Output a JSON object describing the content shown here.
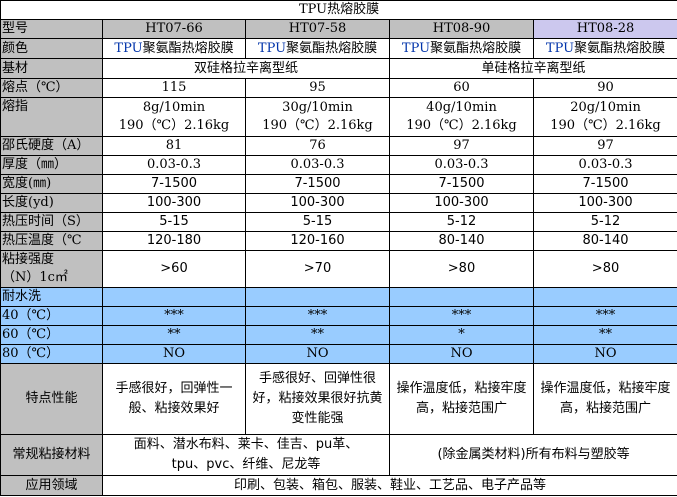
{
  "title": "TPU热熔胶膜",
  "colors": {
    "label_bg": "#c0c0c0",
    "wash_bg": "#99ccff",
    "ht0828_header_bg": "#ccc8ee"
  },
  "rows": {
    "model": {
      "label": "型号",
      "values": [
        "HT07-66",
        "HT07-58",
        "HT08-90",
        "HT08-28"
      ]
    },
    "color": {
      "label": "颜色",
      "prefix": "TPU",
      "suffix": "聚氨酯热熔胶膜"
    },
    "substrate": {
      "label": "基材",
      "values": [
        "双硅格拉辛离型纸",
        "单硅格拉辛离型纸"
      ]
    },
    "melt_point": {
      "label": "熔点（℃）",
      "values": [
        "115",
        "95",
        "60",
        "90"
      ]
    },
    "melt_index": {
      "label": "熔指",
      "line1": [
        "8g/10min",
        "30g/10min",
        "40g/10min",
        "20g/10min"
      ],
      "line2": "190（℃）2.16kg"
    },
    "shore": {
      "label": "邵氏硬度（A）",
      "values": [
        "81",
        "76",
        "97",
        "97"
      ]
    },
    "thickness": {
      "label": "厚度（㎜）",
      "values": [
        "0.03-0.3",
        "0.03-0.3",
        "0.03-0.3",
        "0.03-0.3"
      ]
    },
    "width": {
      "label": "宽度(㎜)",
      "values": [
        "7-1500",
        "7-1500",
        "7-1500",
        "7-1500"
      ]
    },
    "length": {
      "label": "长度(yd)",
      "values": [
        "100-300",
        "100-300",
        "100-300",
        "100-300"
      ]
    },
    "press_time": {
      "label": "热压时间（S）",
      "values": [
        "5-15",
        "5-15",
        "5-12",
        "5-12"
      ]
    },
    "press_temp": {
      "label": "热压温度（℃",
      "values": [
        "120-180",
        "120-160",
        "80-140",
        "80-140"
      ]
    },
    "bond": {
      "label1": "粘接强度",
      "label2": "（N）1c㎡",
      "values": [
        ">60",
        ">70",
        ">80",
        ">80"
      ]
    },
    "wash": {
      "label": "耐水洗"
    },
    "w40": {
      "label": "40（℃）",
      "values": [
        "***",
        "***",
        "***",
        "***"
      ]
    },
    "w60": {
      "label": "60（℃）",
      "values": [
        "**",
        "**",
        "*",
        "**"
      ]
    },
    "w80": {
      "label": "80（℃）",
      "values": [
        "NO",
        "NO",
        "NO",
        "NO"
      ]
    },
    "features": {
      "label": "特点性能",
      "values": [
        "手感很好，回弹性一般、粘接效果好",
        "手感很好、回弹性很好，粘接效果很好抗黄变性能强",
        "操作温度低，粘接牢度高，粘接范围广",
        "操作温度低，粘接牢度高，粘接范围广"
      ]
    },
    "materials": {
      "label": "常规粘接材料",
      "values": [
        "面料、潜水布料、莱卡、佳吉、pu革、tpu、pvc、纤维、尼龙等",
        "(除金属类材料)所有布料与塑胶等"
      ]
    },
    "application": {
      "label": "应用领域",
      "value": "印刷、包装、箱包、服装、鞋业、工艺品、电子产品等"
    }
  }
}
